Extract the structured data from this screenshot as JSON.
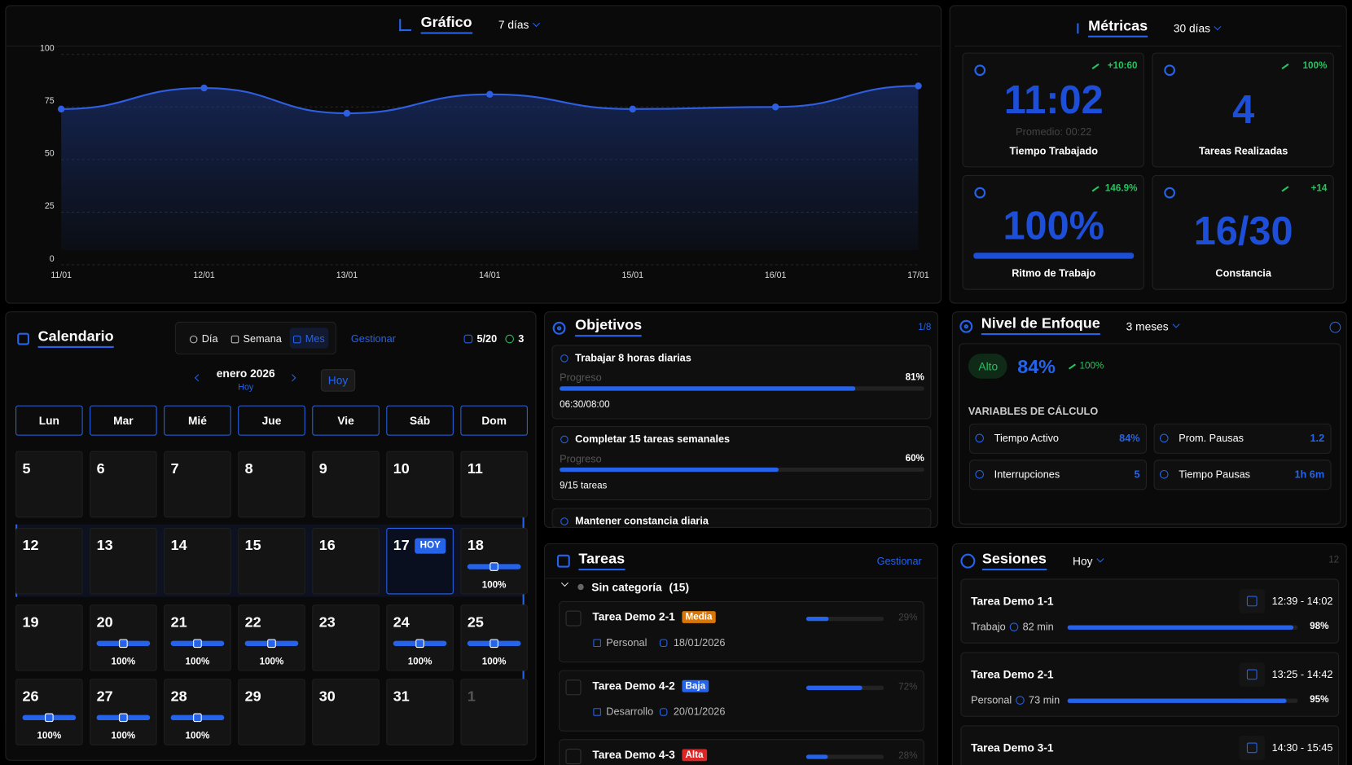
{
  "grafico": {
    "title": "Gráfico",
    "range": "7 días",
    "chart": {
      "type": "line",
      "x": [
        "11/01",
        "12/01",
        "13/01",
        "14/01",
        "15/01",
        "16/01",
        "17/01"
      ],
      "values": [
        74,
        84,
        72,
        81,
        74,
        75,
        85
      ],
      "color": "#2f5fe0",
      "ylim": [
        0,
        100
      ],
      "yticks": [
        0,
        25,
        50,
        75,
        100
      ],
      "grid": true
    }
  },
  "metricas": {
    "title": "Métricas",
    "range": "30 días",
    "cards": [
      {
        "value": "11:02",
        "sub": "Promedio: 00:22",
        "label": "Tiempo Trabajado",
        "trend": "+10:60"
      },
      {
        "value": "4",
        "label": "Tareas Realizadas",
        "trend": "100%"
      },
      {
        "value": "100%",
        "label": "Ritmo de Trabajo",
        "trend": "146.9%"
      },
      {
        "value": "16/30",
        "label": "Constancia",
        "trend": "+14"
      }
    ]
  },
  "calendario": {
    "title": "Calendario",
    "views": [
      "Día",
      "Semana",
      "Mes"
    ],
    "active_view": 2,
    "manage": "Gestionar",
    "tasks": "5/20",
    "streak": "3",
    "month": "enero 2026",
    "today_link": "Hoy",
    "today_button": "Hoy",
    "today_badge": "HOY",
    "weekdays": [
      "Lun",
      "Mar",
      "Mié",
      "Jue",
      "Vie",
      "Sáb",
      "Dom"
    ],
    "days": [
      {
        "day": 5
      },
      {
        "day": 6
      },
      {
        "day": 7
      },
      {
        "day": 8
      },
      {
        "day": 9
      },
      {
        "day": 10
      },
      {
        "day": 11
      },
      {
        "day": 12
      },
      {
        "day": 13
      },
      {
        "day": 14
      },
      {
        "day": 15
      },
      {
        "day": 16
      },
      {
        "day": 17,
        "today": true
      },
      {
        "day": 18,
        "pct": "100%"
      },
      {
        "day": 19
      },
      {
        "day": 20,
        "pct": "100%"
      },
      {
        "day": 21,
        "pct": "100%"
      },
      {
        "day": 22,
        "pct": "100%"
      },
      {
        "day": 23
      },
      {
        "day": 24,
        "pct": "100%"
      },
      {
        "day": 25,
        "pct": "100%"
      },
      {
        "day": 26,
        "pct": "100%"
      },
      {
        "day": 27,
        "pct": "100%"
      },
      {
        "day": 28,
        "pct": "100%"
      },
      {
        "day": 29
      },
      {
        "day": 30
      },
      {
        "day": 31
      },
      {
        "day": 1,
        "outside_month": true
      }
    ]
  },
  "objetivos": {
    "title": "Objetivos",
    "count": "1/8",
    "items": [
      {
        "name": "Trabajar 8 horas diarias",
        "progress_label": "Progreso",
        "pct": "81%",
        "detail": "06:30/08:00"
      },
      {
        "name": "Completar 15 tareas semanales",
        "progress_label": "Progreso",
        "pct": "60%",
        "detail": "9/15 tareas"
      },
      {
        "name": "Mantener constancia diaria"
      }
    ]
  },
  "tareas": {
    "title": "Tareas",
    "manage": "Gestionar",
    "group": "Sin categoría",
    "group_count": "(15)",
    "items": [
      {
        "name": "Tarea Demo 2-1",
        "priority": "Media",
        "priority_color": "#d97706",
        "pct": "29%",
        "category": "Personal",
        "date": "18/01/2026"
      },
      {
        "name": "Tarea Demo 4-2",
        "priority": "Baja",
        "priority_color": "#2563eb",
        "pct": "72%",
        "category": "Desarrollo",
        "date": "20/01/2026"
      },
      {
        "name": "Tarea Demo 4-3",
        "priority": "Alta",
        "priority_color": "#dc2626",
        "pct": "28%"
      }
    ]
  },
  "enfoque": {
    "title": "Nivel de Enfoque",
    "range": "3 meses",
    "level": "Alto",
    "score": "84%",
    "trend": "100%",
    "variables_title": "VARIABLES DE CÁLCULO",
    "variables": [
      {
        "name": "Tiempo Activo",
        "value": "84%"
      },
      {
        "name": "Prom. Pausas",
        "value": "1.2"
      },
      {
        "name": "Interrupciones",
        "value": "5"
      },
      {
        "name": "Tiempo Pausas",
        "value": "1h 6m"
      }
    ]
  },
  "sesiones": {
    "title": "Sesiones",
    "range": "Hoy",
    "count": "12",
    "items": [
      {
        "name": "Tarea Demo 1-1",
        "time": "12:39 - 14:02",
        "category": "Trabajo",
        "duration": "82 min",
        "pct": "98%"
      },
      {
        "name": "Tarea Demo 2-1",
        "time": "13:25 - 14:42",
        "category": "Personal",
        "duration": "73 min",
        "pct": "95%"
      },
      {
        "name": "Tarea Demo 3-1",
        "time": "14:30 - 15:45"
      }
    ]
  }
}
